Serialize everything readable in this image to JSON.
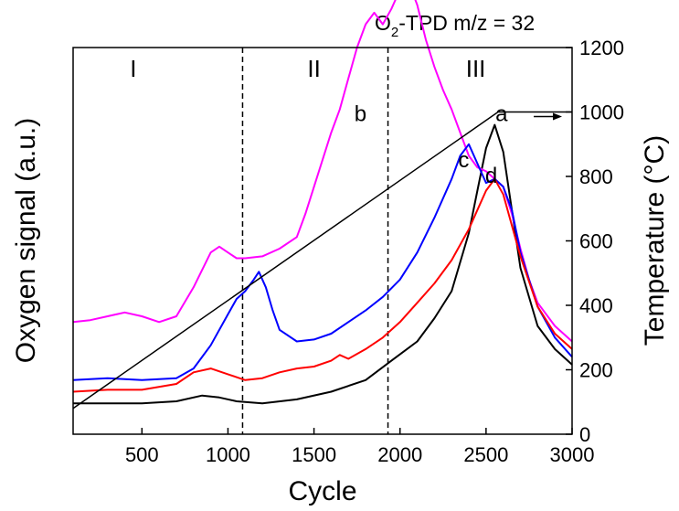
{
  "chart_data": {
    "type": "line",
    "title_main": "O",
    "title_sub": "2",
    "title_rest": "-TPD m/z = 32",
    "xlabel": "Cycle",
    "ylabel": "Oxygen signal (a.u.)",
    "y2label": "Temperature (°C)",
    "xlim": [
      100,
      3000
    ],
    "ylim": [
      0,
      100
    ],
    "y2lim": [
      0,
      1200
    ],
    "xticks": [
      {
        "value": 500,
        "label": "500"
      },
      {
        "value": 1000,
        "label": "1000"
      },
      {
        "value": 1500,
        "label": "1500"
      },
      {
        "value": 2000,
        "label": "2000"
      },
      {
        "value": 2500,
        "label": "2500"
      },
      {
        "value": 3000,
        "label": "3000"
      }
    ],
    "y2ticks": [
      {
        "value": 0,
        "label": "0"
      },
      {
        "value": 200,
        "label": "200"
      },
      {
        "value": 400,
        "label": "400"
      },
      {
        "value": 600,
        "label": "600"
      },
      {
        "value": 800,
        "label": "800"
      },
      {
        "value": 1000,
        "label": "1000"
      },
      {
        "value": 1200,
        "label": "1200"
      }
    ],
    "dividers": [
      1085,
      1930
    ],
    "regions": [
      {
        "label": "I",
        "x": 450
      },
      {
        "label": "II",
        "x": 1500
      },
      {
        "label": "III",
        "x": 2440
      }
    ],
    "temperature_ramp": {
      "x": [
        100,
        2570,
        3000
      ],
      "y": [
        80,
        1000,
        1000
      ],
      "arrow_label_y": 1000
    },
    "series": [
      {
        "label": "a",
        "color": "#000000",
        "label_x": 2590,
        "label_y": 81,
        "x": [
          100,
          300,
          500,
          700,
          850,
          950,
          1050,
          1200,
          1400,
          1600,
          1800,
          1950,
          2100,
          2200,
          2300,
          2400,
          2450,
          2500,
          2550,
          2600,
          2650,
          2700,
          2800,
          2900,
          3000
        ],
        "y": [
          8,
          8,
          8,
          8.5,
          10,
          9.5,
          8.5,
          8,
          9,
          11,
          14,
          19,
          24,
          30,
          37,
          52,
          63,
          74,
          80,
          73,
          58,
          43,
          28,
          22,
          18
        ]
      },
      {
        "label": "b",
        "color": "#ff00ff",
        "label_x": 1770,
        "label_y": 81,
        "x": [
          100,
          200,
          300,
          400,
          500,
          600,
          700,
          800,
          900,
          950,
          1000,
          1050,
          1100,
          1200,
          1300,
          1400,
          1450,
          1500,
          1550,
          1600,
          1650,
          1700,
          1750,
          1800,
          1850,
          1900,
          1950,
          2000,
          2050,
          2100,
          2150,
          2200,
          2250,
          2300,
          2350,
          2400,
          2450,
          2500,
          2550,
          2600,
          2650,
          2700,
          2750,
          2800,
          2900,
          3000
        ],
        "y": [
          29,
          29.5,
          30.5,
          31.5,
          30.5,
          29,
          30.5,
          38,
          47,
          48.5,
          47,
          45.5,
          45.5,
          46,
          48,
          51,
          57,
          64,
          71,
          78,
          84,
          92,
          100,
          106,
          109,
          106,
          110,
          115,
          117,
          111,
          102,
          95,
          89,
          84,
          78,
          72,
          69,
          68,
          66,
          64,
          57,
          48,
          40,
          34,
          28,
          24
        ]
      },
      {
        "label": "c",
        "color": "#0000ff",
        "label_x": 2370,
        "label_y": 69,
        "x": [
          100,
          300,
          500,
          700,
          800,
          900,
          1000,
          1050,
          1100,
          1150,
          1180,
          1220,
          1260,
          1300,
          1400,
          1500,
          1600,
          1700,
          1800,
          1900,
          2000,
          2100,
          2200,
          2300,
          2350,
          2400,
          2450,
          2500,
          2550,
          2600,
          2650,
          2700,
          2800,
          2900,
          3000
        ],
        "y": [
          14,
          14.5,
          14,
          14.5,
          17,
          23,
          31,
          35,
          37,
          40,
          42,
          38,
          32,
          27,
          24,
          24.5,
          26,
          29,
          32,
          35.5,
          40,
          47,
          56,
          66,
          72,
          75,
          70,
          65,
          66,
          64,
          58,
          47,
          33,
          25,
          20
        ]
      },
      {
        "label": "d",
        "color": "#ff0000",
        "label_x": 2530,
        "label_y": 65,
        "x": [
          100,
          300,
          500,
          700,
          800,
          900,
          1000,
          1100,
          1200,
          1300,
          1400,
          1500,
          1600,
          1650,
          1700,
          1800,
          1900,
          2000,
          2100,
          2200,
          2300,
          2400,
          2450,
          2500,
          2550,
          2600,
          2650,
          2700,
          2800,
          2900,
          3000
        ],
        "y": [
          11,
          11.5,
          11.5,
          13,
          16,
          17,
          15.5,
          14,
          14.5,
          16,
          17,
          17.5,
          19,
          20.5,
          19.5,
          22,
          25,
          29,
          34,
          39,
          45,
          53,
          58,
          63,
          66,
          62,
          54,
          46,
          33,
          26,
          22
        ]
      }
    ]
  }
}
